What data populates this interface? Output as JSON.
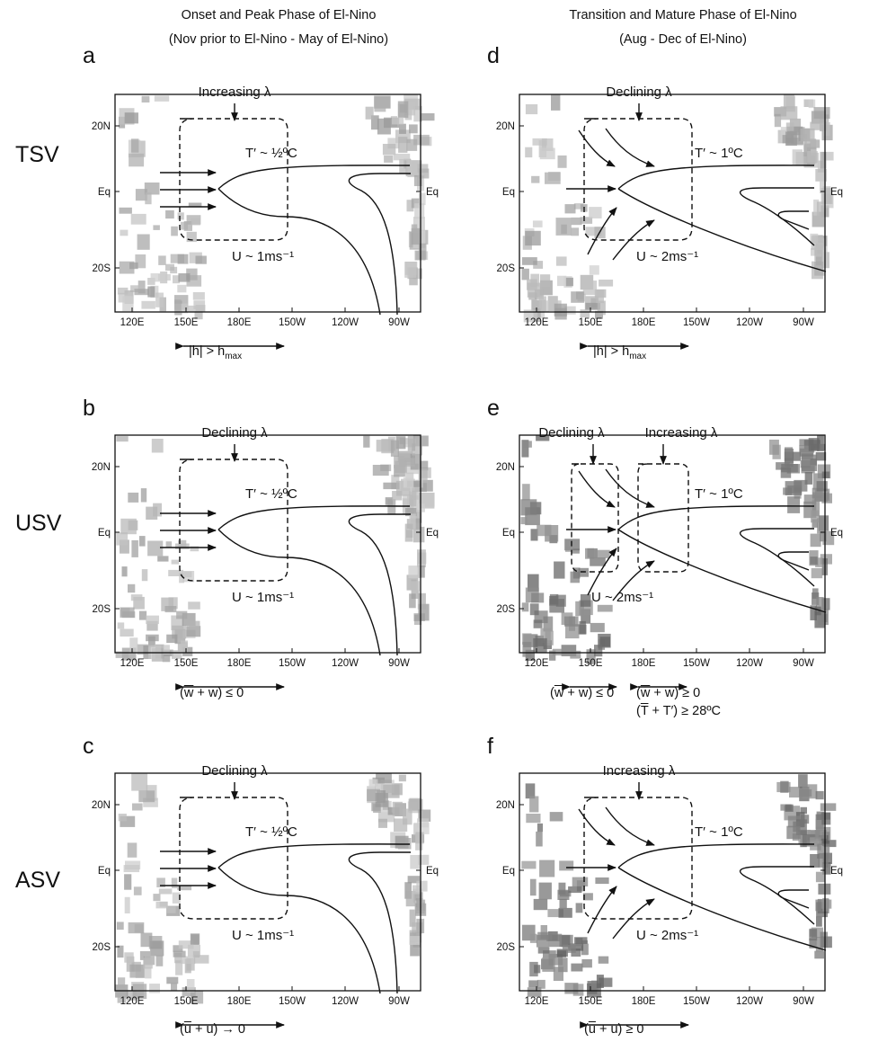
{
  "headers": {
    "left_title": "Onset and Peak Phase of El-Nino",
    "left_subtitle": "(Nov prior to El-Nino - May of El-Nino)",
    "right_title": "Transition and Mature Phase of El-Nino",
    "right_subtitle": "(Aug - Dec of El-Nino)"
  },
  "rows": [
    "TSV",
    "USV",
    "ASV"
  ],
  "axis": {
    "lon_ticks": [
      "120E",
      "150E",
      "180E",
      "150W",
      "120W",
      "90W"
    ],
    "lat_ticks": [
      "20N",
      "Eq",
      "20S"
    ]
  },
  "panels": [
    {
      "letter": "a",
      "lambda": [
        "Increasing λ"
      ],
      "t_label": "T′ ~ ½ºC",
      "u_label": "U ~ 1ms⁻¹",
      "conditions": [
        "|h| > h_max"
      ]
    },
    {
      "letter": "b",
      "lambda": [
        "Declining λ"
      ],
      "t_label": "T′ ~ ½ºC",
      "u_label": "U ~ 1ms⁻¹",
      "conditions": [
        "(w̄ + w) ≤ 0"
      ]
    },
    {
      "letter": "c",
      "lambda": [
        "Declining λ"
      ],
      "t_label": "T′ ~ ½ºC",
      "u_label": "U ~ 1ms⁻¹",
      "conditions": [
        "(ū + u) → 0"
      ]
    },
    {
      "letter": "d",
      "lambda": [
        "Declining λ"
      ],
      "t_label": "T′ ~ 1ºC",
      "u_label": "U ~ 2ms⁻¹",
      "conditions": [
        "|h| > h_max"
      ]
    },
    {
      "letter": "e",
      "lambda": [
        "Declining λ",
        "Increasing λ"
      ],
      "t_label": "T′ ~ 1ºC",
      "u_label": "U ~ 2ms⁻¹",
      "conditions": [
        "(w̄ + w) ≤ 0",
        "(w̄ + w) ≥ 0",
        "(T̄ + T′) ≥ 28ºC"
      ]
    },
    {
      "letter": "f",
      "lambda": [
        "Increasing λ"
      ],
      "t_label": "T′ ~ 1ºC",
      "u_label": "U ~ 2ms⁻¹",
      "conditions": [
        "(ū + u) ≥ 0"
      ]
    }
  ]
}
